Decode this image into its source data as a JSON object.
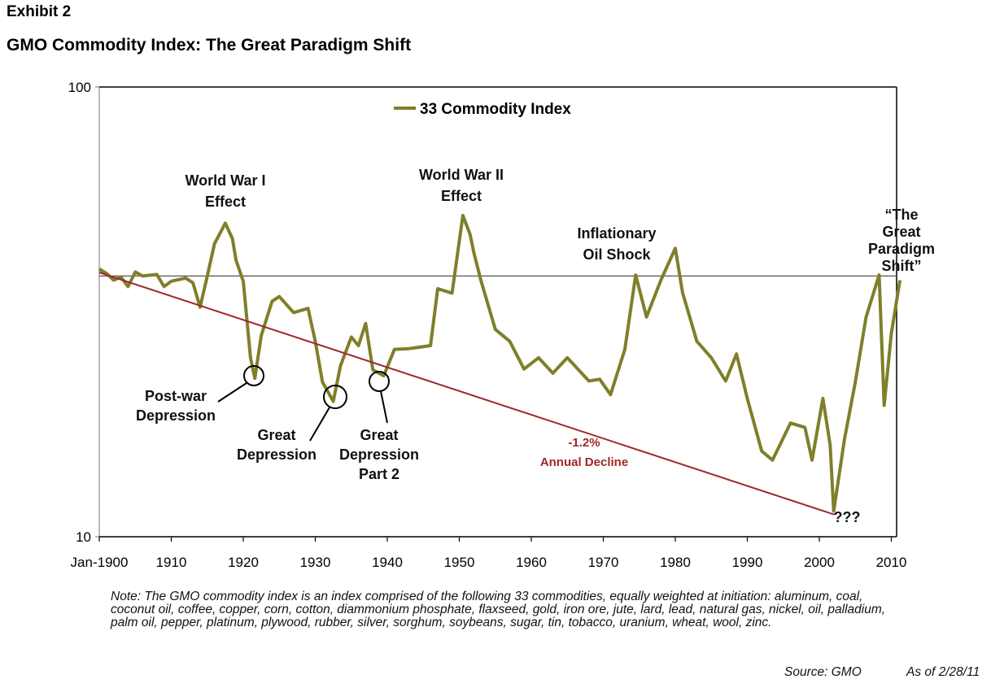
{
  "header": {
    "exhibit": "Exhibit 2",
    "title": "GMO Commodity Index:  The Great Paradigm Shift"
  },
  "chart_data": {
    "type": "line",
    "title": "GMO Commodity Index:  The Great Paradigm Shift",
    "xlabel": "",
    "ylabel": "",
    "yscale": "log",
    "ylim": [
      10,
      100
    ],
    "xlim": [
      1900,
      2011.2
    ],
    "y_ticks": [
      "10",
      "100"
    ],
    "x_ticks": [
      "Jan-1900",
      "1910",
      "1920",
      "1930",
      "1940",
      "1950",
      "1960",
      "1970",
      "1980",
      "1990",
      "2000",
      "2010"
    ],
    "x_tick_values": [
      1900,
      1910,
      1920,
      1930,
      1940,
      1950,
      1960,
      1970,
      1980,
      1990,
      2000,
      2010
    ],
    "legend": {
      "position": "top-center",
      "entries": [
        "33 Commodity Index"
      ]
    },
    "series": [
      {
        "name": "33 Commodity Index",
        "color": "#7f7f2a",
        "x": [
          1900,
          1901,
          1902,
          1903,
          1904,
          1905,
          1906,
          1908,
          1909,
          1910,
          1912,
          1913,
          1914,
          1915,
          1916,
          1917.5,
          1918.5,
          1919,
          1920,
          1921,
          1921.6,
          1922.5,
          1924,
          1925,
          1927,
          1929,
          1930,
          1931,
          1932.5,
          1933.5,
          1935,
          1936,
          1937,
          1938,
          1939.5,
          1941,
          1943,
          1946,
          1947,
          1949,
          1950.5,
          1951.5,
          1952,
          1953,
          1955,
          1957,
          1959,
          1961,
          1963,
          1965,
          1968,
          1969.5,
          1971,
          1973,
          1974.5,
          1976,
          1978,
          1980,
          1981,
          1983,
          1985,
          1987,
          1988.5,
          1990,
          1992,
          1993.5,
          1996,
          1998,
          1999,
          2000.5,
          2001.5,
          2002,
          2003.5,
          2005,
          2006.5,
          2008.3,
          2009,
          2010,
          2011.2
        ],
        "values": [
          39.4,
          38.5,
          37.2,
          37.8,
          36.0,
          38.8,
          38.0,
          38.3,
          36.0,
          37.0,
          37.6,
          36.7,
          32.4,
          38.0,
          44.8,
          49.8,
          46.0,
          41.2,
          37.0,
          25.0,
          22.5,
          28.0,
          33.4,
          34.2,
          31.5,
          32.2,
          27.2,
          22.1,
          20.0,
          24.0,
          27.8,
          26.6,
          29.8,
          23.5,
          22.8,
          26.1,
          26.2,
          26.6,
          35.6,
          34.8,
          51.8,
          47.0,
          43.0,
          37.2,
          28.9,
          27.2,
          23.6,
          25.0,
          23.1,
          25.0,
          22.2,
          22.4,
          20.7,
          26.1,
          38.2,
          30.8,
          37.2,
          43.8,
          34.9,
          27.2,
          25.0,
          22.2,
          25.5,
          20.3,
          15.5,
          14.8,
          17.9,
          17.5,
          14.8,
          20.3,
          16.0,
          11.4,
          16.5,
          22.1,
          30.8,
          38.2,
          19.6,
          28.3,
          37.2
        ]
      },
      {
        "name": "Trend (-1.2% Annual Decline)",
        "color": "#a0282a",
        "x": [
          1900,
          2002.1
        ],
        "values": [
          38.7,
          11.2
        ]
      }
    ],
    "reference_line": {
      "value": 38,
      "color": "#555555"
    },
    "annotations": [
      {
        "id": "ww1",
        "lines": [
          "World War I",
          "Effect"
        ],
        "year": 1917.5
      },
      {
        "id": "ww2",
        "lines": [
          "World War II",
          "Effect"
        ],
        "year": 1950.5
      },
      {
        "id": "oil",
        "lines": [
          "Inflationary",
          "Oil Shock"
        ],
        "year": 1978
      },
      {
        "id": "paradigm",
        "lines": [
          "“The",
          "Great",
          "Paradigm",
          "Shift”"
        ],
        "year": 2011
      },
      {
        "id": "postwar",
        "lines": [
          "Post-war",
          "Depression"
        ],
        "year": 1921.6,
        "circled": true
      },
      {
        "id": "greatdep",
        "lines": [
          "Great",
          "Depression"
        ],
        "year": 1932.5,
        "circled": true
      },
      {
        "id": "greatdep2",
        "lines": [
          "Great",
          "Depression",
          "Part 2"
        ],
        "year": 1939.5,
        "circled": true
      },
      {
        "id": "decline",
        "lines": [
          "-1.2%",
          "Annual Decline"
        ],
        "color": "#a0282a"
      },
      {
        "id": "question",
        "lines": [
          "???"
        ],
        "year": 2002
      }
    ]
  },
  "footer": {
    "note": "Note: The GMO commodity index is an index comprised of the following 33 commodities, equally weighted at initiation:  aluminum, coal, coconut oil, coffee, copper, corn, cotton, diammonium phosphate, flaxseed, gold, iron ore, jute, lard, lead, natural gas, nickel, oil, palladium, palm oil, pepper, platinum, plywood, rubber, silver, sorghum, soybeans, sugar, tin, tobacco, uranium, wheat, wool, zinc.",
    "source": "Source:  GMO",
    "as_of": "As of 2/28/11"
  }
}
